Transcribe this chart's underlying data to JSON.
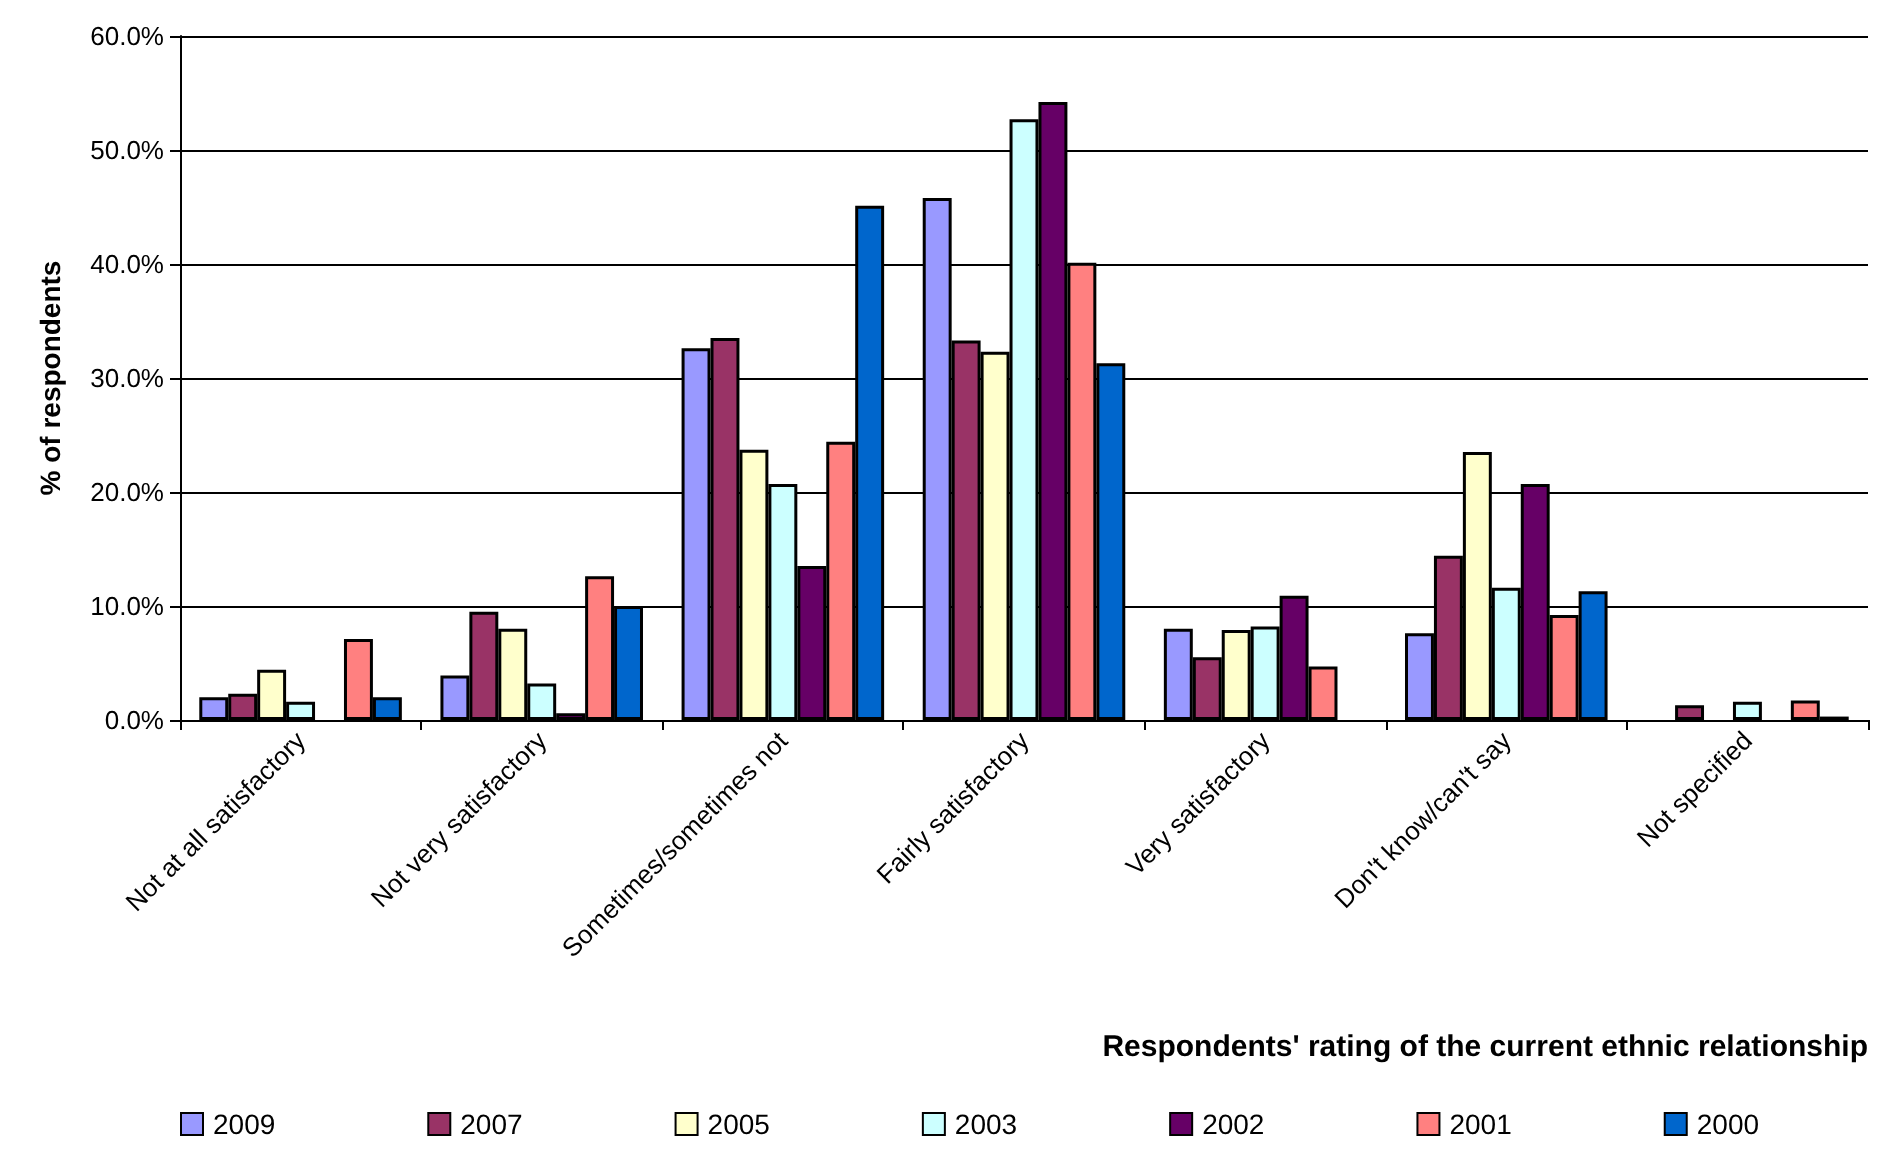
{
  "chart_data": {
    "type": "bar",
    "xlabel": "Respondents' rating of the current ethnic relationship",
    "ylabel": "% of respondents",
    "categories": [
      "Not at all satisfactory",
      "Not very satisfactory",
      "Sometimes/sometimes not",
      "Fairly satisfactory",
      "Very satisfactory",
      "Don't know/can't say",
      "Not specified"
    ],
    "series": [
      {
        "name": "2009",
        "color": "#9999ff",
        "values": [
          2.0,
          3.9,
          32.6,
          45.8,
          8.0,
          7.6,
          null
        ]
      },
      {
        "name": "2007",
        "color": "#993366",
        "values": [
          2.3,
          9.5,
          33.5,
          33.3,
          5.5,
          14.4,
          1.3
        ]
      },
      {
        "name": "2005",
        "color": "#ffffcc",
        "values": [
          4.4,
          8.0,
          23.7,
          32.3,
          7.9,
          23.5,
          null
        ]
      },
      {
        "name": "2003",
        "color": "#ccffff",
        "values": [
          1.6,
          3.2,
          20.7,
          52.7,
          8.2,
          11.6,
          1.6
        ]
      },
      {
        "name": "2002",
        "color": "#660066",
        "values": [
          null,
          0.6,
          13.5,
          54.2,
          10.9,
          20.7,
          null
        ]
      },
      {
        "name": "2001",
        "color": "#ff8080",
        "values": [
          7.1,
          12.6,
          24.4,
          40.1,
          4.7,
          9.2,
          1.7
        ]
      },
      {
        "name": "2000",
        "color": "#0066cc",
        "values": [
          2.0,
          10.0,
          45.1,
          31.3,
          null,
          11.3,
          0.3
        ]
      }
    ],
    "ylim": [
      0,
      60
    ],
    "yticks": [
      {
        "value": 0,
        "label": "0.0%"
      },
      {
        "value": 10,
        "label": "10.0%"
      },
      {
        "value": 20,
        "label": "20.0%"
      },
      {
        "value": 30,
        "label": "30.0%"
      },
      {
        "value": 40,
        "label": "40.0%"
      },
      {
        "value": 50,
        "label": "50.0%"
      },
      {
        "value": 60,
        "label": "60.0%"
      }
    ],
    "grid": "y",
    "legend": "bottom"
  }
}
